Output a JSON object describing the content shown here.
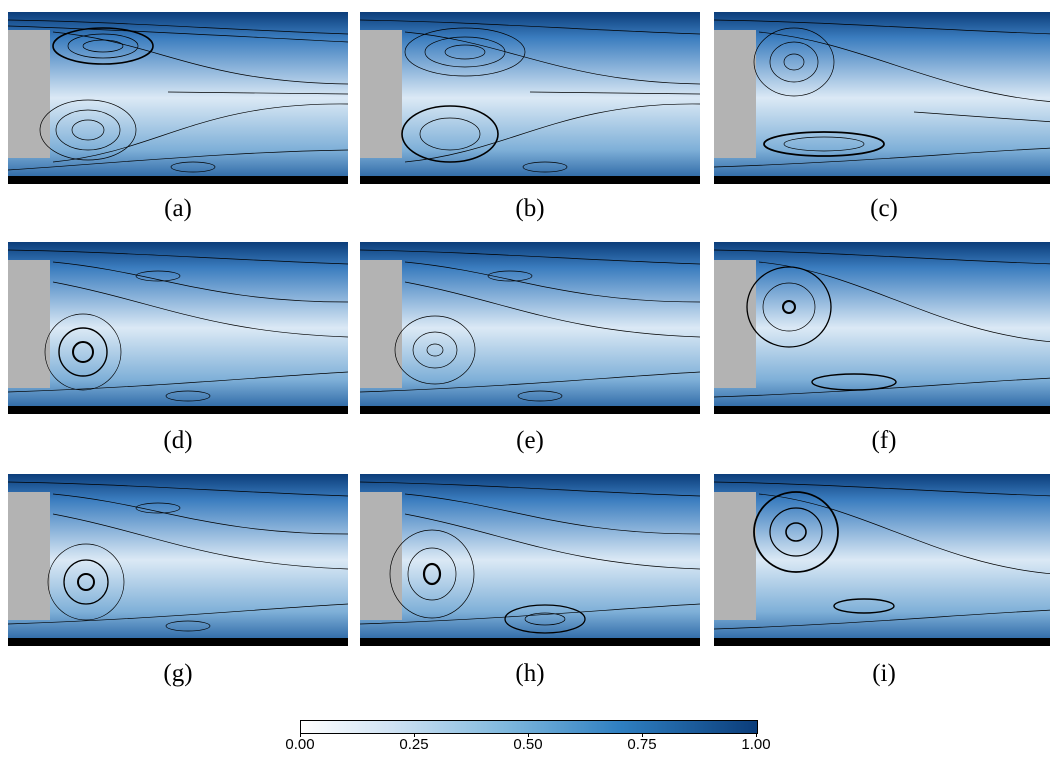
{
  "panels": [
    {
      "label": "(a)"
    },
    {
      "label": "(b)"
    },
    {
      "label": "(c)"
    },
    {
      "label": "(d)"
    },
    {
      "label": "(e)"
    },
    {
      "label": "(f)"
    },
    {
      "label": "(g)"
    },
    {
      "label": "(h)"
    },
    {
      "label": "(i)"
    }
  ],
  "colorbar": {
    "ticks": [
      "0.00",
      "0.25",
      "0.50",
      "0.75",
      "1.00"
    ],
    "colors": [
      "#ffffff",
      "#cfe2f3",
      "#7fb8dd",
      "#2f7fc1",
      "#0b3d7a"
    ]
  }
}
